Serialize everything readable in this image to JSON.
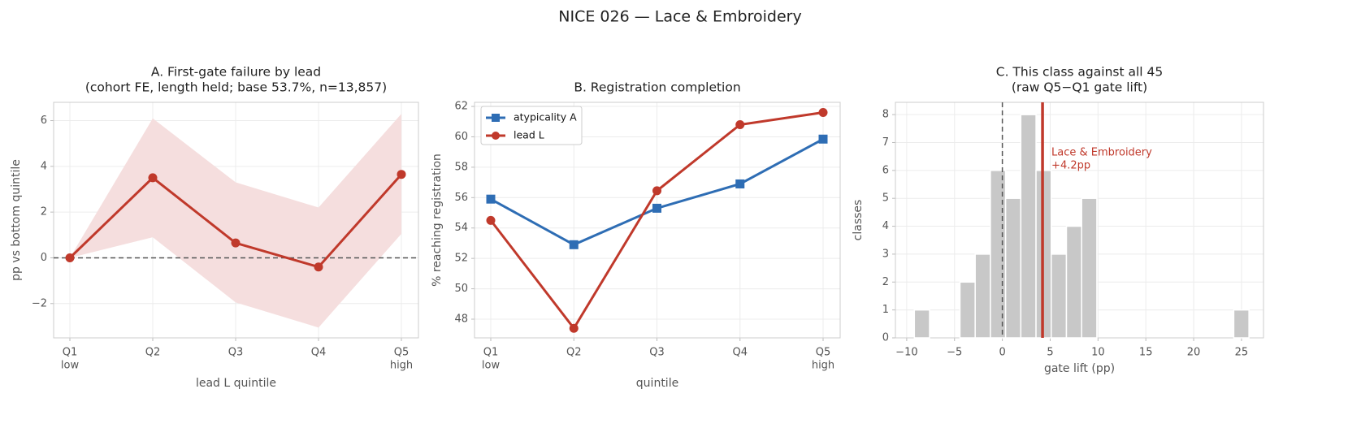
{
  "title": "NICE 026 — Lace & Embroidery",
  "chart_data": [
    {
      "type": "line",
      "title": "A. First-gate failure by lead",
      "subtitle": "(cohort FE, length held; base 53.7%, n=13,857)",
      "categories": [
        "Q1",
        "Q2",
        "Q3",
        "Q4",
        "Q5"
      ],
      "category_sublabels": [
        "low",
        null,
        null,
        null,
        "high"
      ],
      "series": [
        {
          "color": "#c0392b",
          "values": [
            0,
            3.5,
            0.65,
            -0.4,
            3.65
          ],
          "band_lower": [
            0,
            0.9,
            -1.95,
            -3.05,
            1.05
          ],
          "band_upper": [
            0,
            6.1,
            3.3,
            2.2,
            6.3
          ],
          "band_color": "#f5dede"
        }
      ],
      "reference_line": 0,
      "ylim": [
        -3.5,
        6.8
      ],
      "yticks": [
        {
          "value": -2,
          "label": "−2"
        },
        0,
        2,
        4,
        6
      ],
      "grid": true,
      "xlabel": "lead L quintile",
      "ylabel": "pp vs bottom quintile"
    },
    {
      "type": "line",
      "title": "B. Registration completion",
      "categories": [
        "Q1",
        "Q2",
        "Q3",
        "Q4",
        "Q5"
      ],
      "category_sublabels": [
        "low",
        null,
        null,
        null,
        "high"
      ],
      "series": [
        {
          "name": "atypicality A",
          "color": "#2e6db4",
          "marker": "square",
          "values": [
            55.9,
            52.9,
            55.3,
            56.9,
            59.85
          ]
        },
        {
          "name": "lead L",
          "color": "#c0392b",
          "marker": "circle",
          "values": [
            54.5,
            47.4,
            56.45,
            60.8,
            61.6
          ]
        }
      ],
      "ylim": [
        46.77,
        62.27
      ],
      "yticks": [
        48,
        50,
        52,
        54,
        56,
        58,
        60,
        62
      ],
      "grid": true,
      "legend": "upper-left",
      "xlabel": "quintile",
      "ylabel": "% reaching registration"
    },
    {
      "type": "histogram",
      "title": "C. This class against all 45",
      "subtitle": "(raw Q5−Q1 gate lift)",
      "bins": [
        -9.2,
        -7.61,
        -6.02,
        -4.43,
        -2.84,
        -1.25,
        0.34,
        1.93,
        3.52,
        5.11,
        6.7,
        8.29,
        9.88,
        11.47,
        13.06,
        14.65,
        16.24,
        17.83,
        19.42,
        21.01,
        22.6,
        24.19,
        25.78
      ],
      "values": [
        1,
        0,
        0,
        2,
        3,
        6,
        5,
        8,
        6,
        3,
        4,
        5,
        0,
        0,
        0,
        0,
        0,
        0,
        0,
        0,
        0,
        1
      ],
      "color": "#c8c8c8",
      "reference_line": 0,
      "marker": {
        "x": 4.2,
        "name": "Lace & Embroidery",
        "value_label": "+4.2pp",
        "color": "#c0392b"
      },
      "xlim": [
        -11.18,
        27.3
      ],
      "xticks": [
        {
          "value": -10,
          "label": "−10"
        },
        {
          "value": -5,
          "label": "−5"
        },
        0,
        5,
        10,
        15,
        20,
        25
      ],
      "ylim": [
        0,
        8.44
      ],
      "yticks": [
        0,
        1,
        2,
        3,
        4,
        5,
        6,
        7,
        8
      ],
      "grid": true,
      "xlabel": "gate lift (pp)",
      "ylabel": "classes"
    }
  ]
}
